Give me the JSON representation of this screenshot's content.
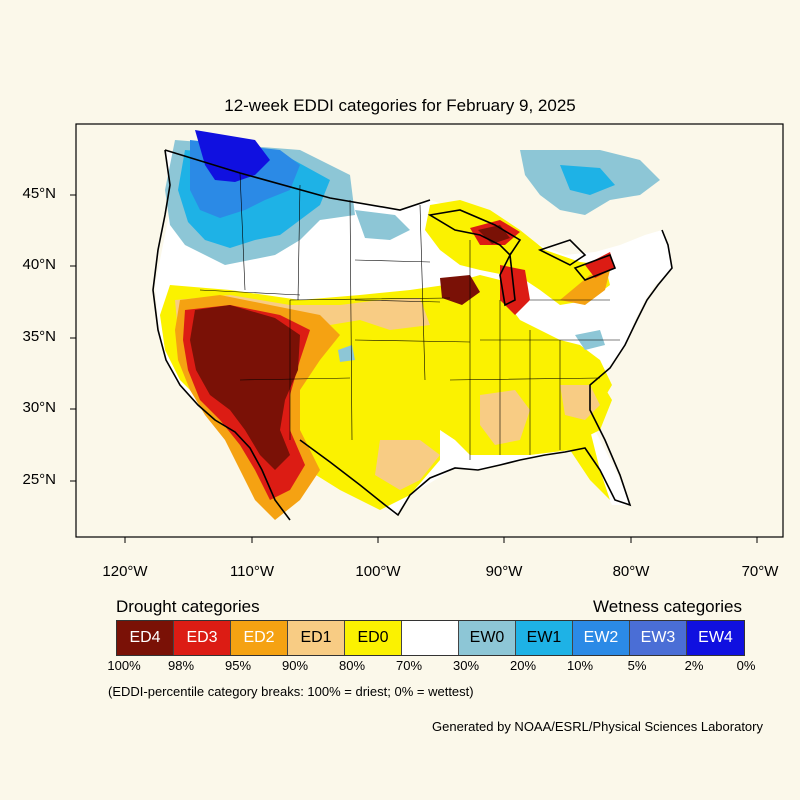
{
  "title": "12-week EDDI categories for February 9, 2025",
  "lat_labels": [
    "45°N",
    "40°N",
    "35°N",
    "30°N",
    "25°N"
  ],
  "lon_labels": [
    "120°W",
    "110°W",
    "100°W",
    "90°W",
    "80°W",
    "70°W"
  ],
  "legend": {
    "drought_heading": "Drought categories",
    "wetness_heading": "Wetness categories",
    "categories": [
      {
        "label": "ED4",
        "color": "#7a1106",
        "text_color": "#ffffff"
      },
      {
        "label": "ED3",
        "color": "#dc1c14",
        "text_color": "#ffffff"
      },
      {
        "label": "ED2",
        "color": "#f5a212",
        "text_color": "#ffffff"
      },
      {
        "label": "ED1",
        "color": "#f8cc84",
        "text_color": "#000000"
      },
      {
        "label": "ED0",
        "color": "#fbf200",
        "text_color": "#000000"
      },
      {
        "label": "",
        "color": "#ffffff",
        "text_color": "#000000"
      },
      {
        "label": "EW0",
        "color": "#8dc6d6",
        "text_color": "#000000"
      },
      {
        "label": "EW1",
        "color": "#1eb2e6",
        "text_color": "#000000"
      },
      {
        "label": "EW2",
        "color": "#2b8ae6",
        "text_color": "#ffffff"
      },
      {
        "label": "EW3",
        "color": "#4a6ed6",
        "text_color": "#ffffff"
      },
      {
        "label": "EW4",
        "color": "#1010e0",
        "text_color": "#ffffff"
      }
    ],
    "breaks": [
      "100%",
      "98%",
      "95%",
      "90%",
      "80%",
      "70%",
      "30%",
      "20%",
      "10%",
      "5%",
      "2%",
      "0%"
    ]
  },
  "note": "(EDDI-percentile category breaks: 100% = driest; 0% = wettest)",
  "credit": "Generated by NOAA/ESRL/Physical Sciences Laboratory"
}
